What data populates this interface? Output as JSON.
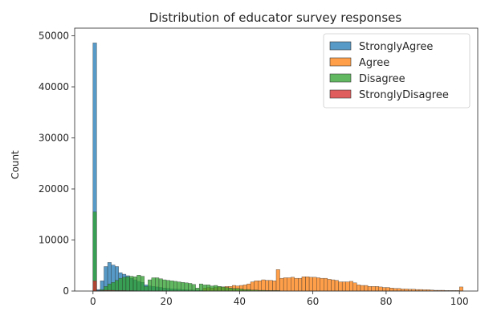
{
  "chart_data": {
    "type": "histogram",
    "title": "Distribution of educator survey responses",
    "xlabel": "",
    "ylabel": "Count",
    "xlim": [
      -5,
      105
    ],
    "ylim": [
      0,
      51500
    ],
    "x_ticks": [
      0,
      20,
      40,
      60,
      80,
      100
    ],
    "y_ticks": [
      0,
      10000,
      20000,
      30000,
      40000,
      50000
    ],
    "grid": false,
    "legend_position": "top-right",
    "bin_width": 1,
    "series": [
      {
        "name": "StronglyAgree",
        "color": "#1f77b4",
        "bins": [
          [
            0,
            48600
          ],
          [
            1,
            300
          ],
          [
            2,
            2000
          ],
          [
            3,
            4800
          ],
          [
            4,
            5600
          ],
          [
            5,
            5100
          ],
          [
            6,
            4800
          ],
          [
            7,
            3600
          ],
          [
            8,
            3300
          ],
          [
            9,
            3000
          ],
          [
            10,
            2500
          ],
          [
            11,
            2200
          ],
          [
            12,
            1900
          ],
          [
            13,
            1700
          ],
          [
            14,
            1200
          ],
          [
            15,
            1000
          ],
          [
            16,
            900
          ],
          [
            17,
            800
          ],
          [
            18,
            700
          ],
          [
            19,
            600
          ],
          [
            20,
            500
          ],
          [
            21,
            450
          ],
          [
            22,
            400
          ],
          [
            23,
            350
          ],
          [
            24,
            300
          ],
          [
            25,
            250
          ],
          [
            26,
            220
          ],
          [
            27,
            200
          ],
          [
            28,
            180
          ],
          [
            29,
            150
          ],
          [
            30,
            130
          ]
        ]
      },
      {
        "name": "Agree",
        "color": "#ff7f0e",
        "bins": [
          [
            0,
            300
          ],
          [
            30,
            600
          ],
          [
            31,
            700
          ],
          [
            32,
            600
          ],
          [
            33,
            700
          ],
          [
            34,
            800
          ],
          [
            35,
            800
          ],
          [
            36,
            900
          ],
          [
            37,
            900
          ],
          [
            38,
            1100
          ],
          [
            39,
            1000
          ],
          [
            40,
            1100
          ],
          [
            41,
            1200
          ],
          [
            42,
            1400
          ],
          [
            43,
            1800
          ],
          [
            44,
            2000
          ],
          [
            45,
            2000
          ],
          [
            46,
            2200
          ],
          [
            47,
            2100
          ],
          [
            48,
            2100
          ],
          [
            49,
            2000
          ],
          [
            50,
            4200
          ],
          [
            51,
            2500
          ],
          [
            52,
            2600
          ],
          [
            53,
            2600
          ],
          [
            54,
            2700
          ],
          [
            55,
            2500
          ],
          [
            56,
            2500
          ],
          [
            57,
            2800
          ],
          [
            58,
            2800
          ],
          [
            59,
            2700
          ],
          [
            60,
            2700
          ],
          [
            61,
            2600
          ],
          [
            62,
            2500
          ],
          [
            63,
            2500
          ],
          [
            64,
            2300
          ],
          [
            65,
            2200
          ],
          [
            66,
            2100
          ],
          [
            67,
            1800
          ],
          [
            68,
            1800
          ],
          [
            69,
            1800
          ],
          [
            70,
            1900
          ],
          [
            71,
            1600
          ],
          [
            72,
            1200
          ],
          [
            73,
            1100
          ],
          [
            74,
            1100
          ],
          [
            75,
            900
          ],
          [
            76,
            900
          ],
          [
            77,
            900
          ],
          [
            78,
            800
          ],
          [
            79,
            700
          ],
          [
            80,
            700
          ],
          [
            81,
            600
          ],
          [
            82,
            500
          ],
          [
            83,
            500
          ],
          [
            84,
            400
          ],
          [
            85,
            400
          ],
          [
            86,
            350
          ],
          [
            87,
            350
          ],
          [
            88,
            300
          ],
          [
            89,
            300
          ],
          [
            90,
            250
          ],
          [
            91,
            250
          ],
          [
            92,
            200
          ],
          [
            93,
            150
          ],
          [
            94,
            150
          ],
          [
            95,
            150
          ],
          [
            96,
            100
          ],
          [
            97,
            100
          ],
          [
            98,
            100
          ],
          [
            99,
            100
          ],
          [
            100,
            800
          ]
        ]
      },
      {
        "name": "Disagree",
        "color": "#2ca02c",
        "bins": [
          [
            0,
            15500
          ],
          [
            1,
            100
          ],
          [
            2,
            300
          ],
          [
            3,
            900
          ],
          [
            4,
            1400
          ],
          [
            5,
            1700
          ],
          [
            6,
            2100
          ],
          [
            7,
            2500
          ],
          [
            8,
            2700
          ],
          [
            9,
            2800
          ],
          [
            10,
            2900
          ],
          [
            11,
            2800
          ],
          [
            12,
            3100
          ],
          [
            13,
            2900
          ],
          [
            14,
            900
          ],
          [
            15,
            2200
          ],
          [
            16,
            2600
          ],
          [
            17,
            2600
          ],
          [
            18,
            2400
          ],
          [
            19,
            2200
          ],
          [
            20,
            2100
          ],
          [
            21,
            2000
          ],
          [
            22,
            1900
          ],
          [
            23,
            1800
          ],
          [
            24,
            1700
          ],
          [
            25,
            1600
          ],
          [
            26,
            1500
          ],
          [
            27,
            1300
          ],
          [
            28,
            600
          ],
          [
            29,
            1400
          ],
          [
            30,
            1200
          ],
          [
            31,
            1200
          ],
          [
            32,
            1000
          ],
          [
            33,
            1100
          ],
          [
            34,
            900
          ],
          [
            35,
            800
          ],
          [
            36,
            700
          ],
          [
            37,
            600
          ],
          [
            38,
            500
          ],
          [
            39,
            500
          ],
          [
            40,
            400
          ],
          [
            41,
            300
          ],
          [
            42,
            300
          ],
          [
            43,
            200
          ],
          [
            44,
            200
          ],
          [
            45,
            150
          ],
          [
            46,
            150
          ],
          [
            47,
            100
          ],
          [
            48,
            100
          ],
          [
            49,
            100
          ],
          [
            50,
            100
          ]
        ]
      },
      {
        "name": "StronglyDisagree",
        "color": "#d62728",
        "bins": [
          [
            0,
            2000
          ],
          [
            1,
            50
          ],
          [
            2,
            100
          ],
          [
            3,
            150
          ],
          [
            4,
            150
          ],
          [
            5,
            150
          ],
          [
            6,
            100
          ],
          [
            7,
            100
          ],
          [
            8,
            100
          ],
          [
            9,
            80
          ],
          [
            10,
            80
          ],
          [
            11,
            60
          ],
          [
            12,
            50
          ],
          [
            13,
            40
          ],
          [
            14,
            30
          ],
          [
            15,
            30
          ],
          [
            16,
            20
          ],
          [
            17,
            20
          ],
          [
            18,
            20
          ],
          [
            19,
            10
          ],
          [
            20,
            10
          ]
        ]
      }
    ]
  }
}
